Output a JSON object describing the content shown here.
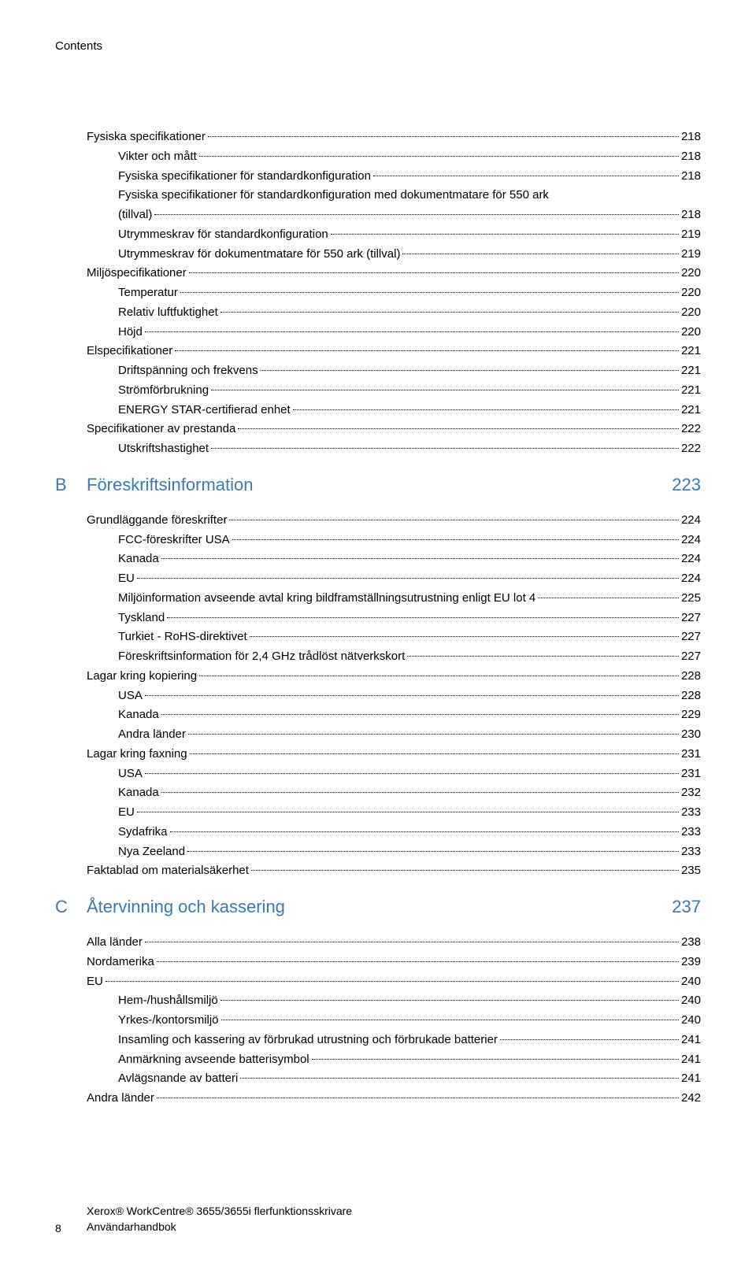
{
  "header": "Contents",
  "colors": {
    "link": "#3a7ab5",
    "text": "#000000",
    "bg": "#ffffff"
  },
  "toc1": [
    {
      "lvl": 0,
      "label": "Fysiska specifikationer",
      "page": "218"
    },
    {
      "lvl": 1,
      "label": "Vikter och mått",
      "page": "218"
    },
    {
      "lvl": 1,
      "label": "Fysiska specifikationer för standardkonfiguration",
      "page": "218"
    },
    {
      "lvl": 1,
      "label": "Fysiska specifikationer för standardkonfiguration med dokumentmatare för 550 ark",
      "page": ""
    },
    {
      "lvl": 1,
      "label": "(tillval)",
      "page": "218"
    },
    {
      "lvl": 1,
      "label": "Utrymmeskrav för standardkonfiguration",
      "page": "219"
    },
    {
      "lvl": 1,
      "label": "Utrymmeskrav för dokumentmatare för 550 ark (tillval)",
      "page": "219"
    },
    {
      "lvl": 0,
      "label": "Miljöspecifikationer",
      "page": "220"
    },
    {
      "lvl": 1,
      "label": "Temperatur",
      "page": "220"
    },
    {
      "lvl": 1,
      "label": "Relativ luftfuktighet",
      "page": "220"
    },
    {
      "lvl": 1,
      "label": "Höjd",
      "page": "220"
    },
    {
      "lvl": 0,
      "label": "Elspecifikationer",
      "page": "221"
    },
    {
      "lvl": 1,
      "label": "Driftspänning och frekvens",
      "page": "221"
    },
    {
      "lvl": 1,
      "label": "Strömförbrukning",
      "page": "221"
    },
    {
      "lvl": 1,
      "label": "ENERGY STAR-certifierad enhet",
      "page": "221"
    },
    {
      "lvl": 0,
      "label": "Specifikationer av prestanda",
      "page": "222"
    },
    {
      "lvl": 1,
      "label": "Utskriftshastighet",
      "page": "222"
    }
  ],
  "sectionB": {
    "letter": "B",
    "title": "Föreskriftsinformation",
    "page": "223"
  },
  "toc2": [
    {
      "lvl": 0,
      "label": "Grundläggande föreskrifter",
      "page": "224"
    },
    {
      "lvl": 1,
      "label": "FCC-föreskrifter USA",
      "page": "224"
    },
    {
      "lvl": 1,
      "label": "Kanada",
      "page": "224"
    },
    {
      "lvl": 1,
      "label": "EU",
      "page": "224"
    },
    {
      "lvl": 1,
      "label": "Miljöinformation avseende avtal kring bildframställningsutrustning enligt EU lot 4",
      "page": "225"
    },
    {
      "lvl": 1,
      "label": "Tyskland",
      "page": "227"
    },
    {
      "lvl": 1,
      "label": "Turkiet - RoHS-direktivet",
      "page": "227"
    },
    {
      "lvl": 1,
      "label": "Föreskriftsinformation för 2,4 GHz trådlöst nätverkskort",
      "page": "227"
    },
    {
      "lvl": 0,
      "label": "Lagar kring kopiering",
      "page": "228"
    },
    {
      "lvl": 1,
      "label": "USA",
      "page": "228"
    },
    {
      "lvl": 1,
      "label": "Kanada",
      "page": "229"
    },
    {
      "lvl": 1,
      "label": "Andra länder",
      "page": "230"
    },
    {
      "lvl": 0,
      "label": "Lagar kring faxning",
      "page": "231"
    },
    {
      "lvl": 1,
      "label": "USA",
      "page": "231"
    },
    {
      "lvl": 1,
      "label": "Kanada",
      "page": "232"
    },
    {
      "lvl": 1,
      "label": "EU",
      "page": "233"
    },
    {
      "lvl": 1,
      "label": "Sydafrika",
      "page": "233"
    },
    {
      "lvl": 1,
      "label": "Nya Zeeland",
      "page": "233"
    },
    {
      "lvl": 0,
      "label": "Faktablad om materialsäkerhet",
      "page": "235"
    }
  ],
  "sectionC": {
    "letter": "C",
    "title": "Återvinning och kassering",
    "page": "237"
  },
  "toc3": [
    {
      "lvl": 0,
      "label": "Alla länder",
      "page": "238"
    },
    {
      "lvl": 0,
      "label": "Nordamerika",
      "page": "239"
    },
    {
      "lvl": 0,
      "label": "EU",
      "page": "240"
    },
    {
      "lvl": 1,
      "label": "Hem-/hushållsmiljö",
      "page": "240"
    },
    {
      "lvl": 1,
      "label": "Yrkes-/kontorsmiljö",
      "page": "240"
    },
    {
      "lvl": 1,
      "label": "Insamling och kassering av förbrukad utrustning och förbrukade batterier",
      "page": "241"
    },
    {
      "lvl": 1,
      "label": "Anmärkning avseende batterisymbol",
      "page": "241"
    },
    {
      "lvl": 1,
      "label": "Avlägsnande av batteri",
      "page": "241"
    },
    {
      "lvl": 0,
      "label": "Andra länder",
      "page": "242"
    }
  ],
  "footer": {
    "pnum": "8",
    "line1": "Xerox® WorkCentre® 3655/3655i flerfunktionsskrivare",
    "line2": "Användarhandbok"
  }
}
